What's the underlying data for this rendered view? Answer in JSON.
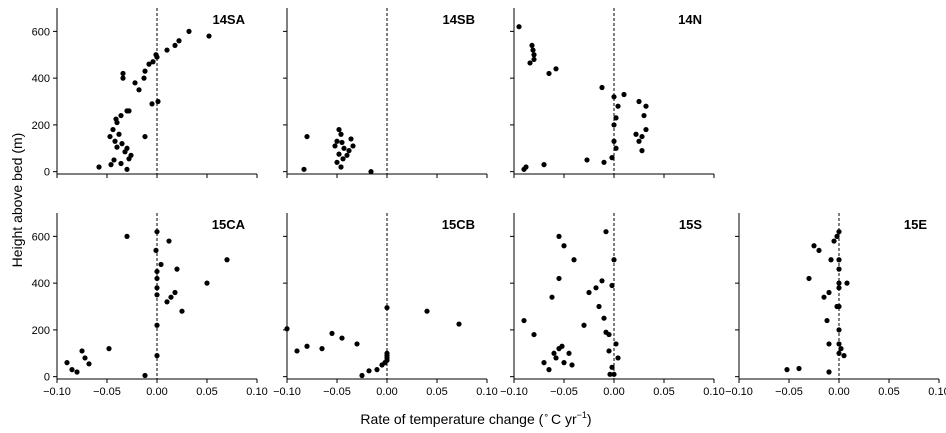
{
  "chart_data": {
    "type": "scatter",
    "xlabel_parts": [
      "Rate of temperature change (",
      "∘",
      "C yr",
      "−1",
      ")"
    ],
    "ylabel": "Height above bed (m)",
    "xlim": [
      -0.1,
      0.1
    ],
    "ylim": [
      -10,
      700
    ],
    "xticks": [
      "−0.10",
      "−0.05",
      "0.00",
      "0.05",
      "0.10"
    ],
    "yticks": [
      "0",
      "200",
      "400",
      "600"
    ],
    "vertical_reference_line": 0.0,
    "point_color": "#000000",
    "panels": [
      {
        "title": "14SA",
        "points": [
          [
            -0.058,
            20
          ],
          [
            -0.046,
            30
          ],
          [
            -0.043,
            50
          ],
          [
            -0.036,
            35
          ],
          [
            -0.03,
            10
          ],
          [
            -0.028,
            55
          ],
          [
            -0.026,
            70
          ],
          [
            -0.032,
            85
          ],
          [
            -0.03,
            100
          ],
          [
            -0.04,
            105
          ],
          [
            -0.035,
            120
          ],
          [
            -0.042,
            130
          ],
          [
            -0.047,
            150
          ],
          [
            -0.038,
            160
          ],
          [
            -0.044,
            180
          ],
          [
            -0.04,
            210
          ],
          [
            -0.036,
            240
          ],
          [
            -0.041,
            225
          ],
          [
            -0.03,
            260
          ],
          [
            -0.018,
            350
          ],
          [
            -0.012,
            150
          ],
          [
            -0.005,
            290
          ],
          [
            0.001,
            300
          ],
          [
            -0.028,
            260
          ],
          [
            -0.022,
            380
          ],
          [
            -0.034,
            400
          ],
          [
            -0.034,
            420
          ],
          [
            -0.013,
            400
          ],
          [
            -0.012,
            430
          ],
          [
            -0.008,
            460
          ],
          [
            -0.004,
            470
          ],
          [
            0.0,
            490
          ],
          [
            -0.001,
            500
          ],
          [
            0.01,
            520
          ],
          [
            0.018,
            540
          ],
          [
            0.022,
            560
          ],
          [
            0.032,
            600
          ],
          [
            0.052,
            580
          ]
        ]
      },
      {
        "title": "14SB",
        "points": [
          [
            -0.083,
            10
          ],
          [
            -0.08,
            150
          ],
          [
            -0.048,
            180
          ],
          [
            -0.046,
            160
          ],
          [
            -0.05,
            130
          ],
          [
            -0.045,
            125
          ],
          [
            -0.052,
            110
          ],
          [
            -0.043,
            100
          ],
          [
            -0.038,
            90
          ],
          [
            -0.048,
            75
          ],
          [
            -0.04,
            70
          ],
          [
            -0.044,
            55
          ],
          [
            -0.05,
            40
          ],
          [
            -0.036,
            140
          ],
          [
            -0.034,
            110
          ],
          [
            -0.046,
            20
          ],
          [
            -0.016,
            0
          ]
        ]
      },
      {
        "title": "14N",
        "points": [
          [
            -0.095,
            620
          ],
          [
            -0.082,
            540
          ],
          [
            -0.081,
            520
          ],
          [
            -0.08,
            500
          ],
          [
            -0.08,
            480
          ],
          [
            -0.084,
            465
          ],
          [
            -0.065,
            420
          ],
          [
            -0.058,
            440
          ],
          [
            -0.09,
            10
          ],
          [
            -0.088,
            20
          ],
          [
            -0.07,
            30
          ],
          [
            -0.027,
            50
          ],
          [
            -0.01,
            40
          ],
          [
            -0.012,
            360
          ],
          [
            0.0,
            320
          ],
          [
            0.0,
            200
          ],
          [
            0.0,
            130
          ],
          [
            -0.002,
            60
          ],
          [
            0.002,
            230
          ],
          [
            0.004,
            280
          ],
          [
            0.01,
            330
          ],
          [
            0.025,
            300
          ],
          [
            0.032,
            280
          ],
          [
            0.03,
            240
          ],
          [
            0.022,
            160
          ],
          [
            0.025,
            130
          ],
          [
            0.028,
            90
          ],
          [
            0.032,
            180
          ],
          [
            0.028,
            150
          ],
          [
            0.002,
            100
          ]
        ]
      },
      {
        "title": "15CA",
        "points": [
          [
            -0.09,
            60
          ],
          [
            -0.085,
            30
          ],
          [
            -0.08,
            20
          ],
          [
            -0.075,
            110
          ],
          [
            -0.072,
            80
          ],
          [
            -0.068,
            55
          ],
          [
            -0.048,
            120
          ],
          [
            -0.03,
            600
          ],
          [
            -0.012,
            5
          ],
          [
            0.0,
            90
          ],
          [
            0.0,
            220
          ],
          [
            0.0,
            350
          ],
          [
            0.0,
            380
          ],
          [
            0.0,
            420
          ],
          [
            0.0,
            450
          ],
          [
            -0.001,
            540
          ],
          [
            0.0,
            620
          ],
          [
            0.004,
            480
          ],
          [
            0.01,
            320
          ],
          [
            0.014,
            340
          ],
          [
            0.018,
            360
          ],
          [
            0.02,
            460
          ],
          [
            0.025,
            280
          ],
          [
            0.05,
            400
          ],
          [
            0.07,
            500
          ],
          [
            0.012,
            580
          ]
        ]
      },
      {
        "title": "15CB",
        "points": [
          [
            -0.1,
            205
          ],
          [
            -0.09,
            110
          ],
          [
            -0.08,
            130
          ],
          [
            -0.065,
            120
          ],
          [
            -0.055,
            185
          ],
          [
            -0.045,
            165
          ],
          [
            -0.03,
            140
          ],
          [
            -0.025,
            5
          ],
          [
            -0.018,
            25
          ],
          [
            -0.01,
            30
          ],
          [
            -0.005,
            50
          ],
          [
            -0.002,
            60
          ],
          [
            0.0,
            70
          ],
          [
            0.0,
            80
          ],
          [
            0.0,
            90
          ],
          [
            0.0,
            100
          ],
          [
            0.0,
            295
          ],
          [
            0.04,
            280
          ],
          [
            0.072,
            225
          ]
        ]
      },
      {
        "title": "15S",
        "points": [
          [
            -0.09,
            240
          ],
          [
            -0.08,
            180
          ],
          [
            -0.07,
            60
          ],
          [
            -0.065,
            30
          ],
          [
            -0.06,
            100
          ],
          [
            -0.058,
            80
          ],
          [
            -0.055,
            120
          ],
          [
            -0.052,
            130
          ],
          [
            -0.05,
            60
          ],
          [
            -0.045,
            100
          ],
          [
            -0.042,
            50
          ],
          [
            -0.062,
            340
          ],
          [
            -0.055,
            420
          ],
          [
            -0.055,
            600
          ],
          [
            -0.05,
            560
          ],
          [
            -0.04,
            500
          ],
          [
            -0.03,
            220
          ],
          [
            -0.025,
            360
          ],
          [
            -0.018,
            380
          ],
          [
            -0.015,
            300
          ],
          [
            -0.012,
            410
          ],
          [
            -0.01,
            250
          ],
          [
            -0.008,
            190
          ],
          [
            -0.005,
            180
          ],
          [
            -0.005,
            110
          ],
          [
            -0.002,
            40
          ],
          [
            0.0,
            10
          ],
          [
            0.0,
            500
          ],
          [
            -0.002,
            390
          ],
          [
            -0.008,
            620
          ],
          [
            -0.004,
            10
          ],
          [
            0.002,
            140
          ],
          [
            0.004,
            80
          ]
        ]
      },
      {
        "title": "15E",
        "points": [
          [
            -0.052,
            30
          ],
          [
            -0.04,
            35
          ],
          [
            -0.03,
            420
          ],
          [
            -0.025,
            560
          ],
          [
            -0.02,
            540
          ],
          [
            -0.015,
            340
          ],
          [
            -0.012,
            240
          ],
          [
            -0.01,
            20
          ],
          [
            -0.01,
            140
          ],
          [
            -0.008,
            500
          ],
          [
            -0.005,
            580
          ],
          [
            -0.002,
            600
          ],
          [
            -0.002,
            300
          ],
          [
            0.0,
            620
          ],
          [
            0.0,
            500
          ],
          [
            0.0,
            460
          ],
          [
            0.0,
            400
          ],
          [
            0.0,
            380
          ],
          [
            0.0,
            300
          ],
          [
            0.0,
            200
          ],
          [
            0.0,
            140
          ],
          [
            0.0,
            100
          ],
          [
            0.002,
            120
          ],
          [
            0.005,
            90
          ],
          [
            0.008,
            400
          ],
          [
            -0.01,
            360
          ]
        ]
      }
    ]
  }
}
